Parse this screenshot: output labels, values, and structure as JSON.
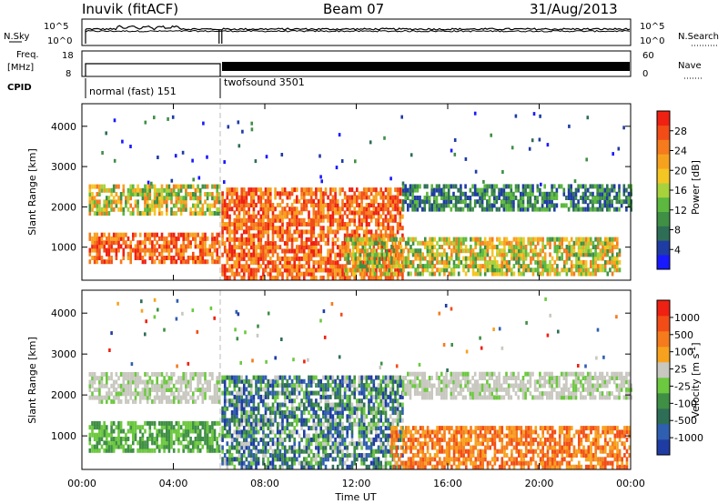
{
  "header": {
    "station": "Inuvik (fitACF)",
    "beam": "Beam 07",
    "date": "31/Aug/2013"
  },
  "top_strip": {
    "left_label": "N.Sky",
    "left_ticks": [
      "10^5",
      "10^0"
    ],
    "right_label": "N.Search",
    "right_ticks": [
      "10^5",
      "10^0"
    ]
  },
  "freq_strip": {
    "left_label_line1": "Freq.",
    "left_label_line2": "[MHz]",
    "left_ticks": [
      "18",
      "8"
    ],
    "right_label": "Nave",
    "right_ticks": [
      "60",
      "0"
    ]
  },
  "cpid": {
    "label": "CPID",
    "modes": [
      {
        "text": "normal (fast) 151"
      },
      {
        "text": "twofsound 3501"
      }
    ]
  },
  "chart_data": [
    {
      "type": "heatmap",
      "name": "power",
      "ylabel": "Slant Range [km]",
      "xlabel": "",
      "yticks": [
        "1000",
        "2000",
        "3000",
        "4000"
      ],
      "colorbar_label": "Power [dB]",
      "colorbar_ticks": [
        "4",
        "8",
        "12",
        "16",
        "20",
        "24",
        "28"
      ],
      "colorbar_colors": [
        "#1919ff",
        "#1f3ca3",
        "#2e6e57",
        "#3f8f45",
        "#5cb83e",
        "#a8d23b",
        "#f4c623",
        "#f7a21f",
        "#f57b1d",
        "#f24d17",
        "#ef2112"
      ],
      "bands": [
        {
          "t_start": 0.3,
          "t_end": 6.0,
          "r_low": 1800,
          "r_high": 2550,
          "level": "mid"
        },
        {
          "t_start": 0.3,
          "t_end": 6.0,
          "r_low": 600,
          "r_high": 1300,
          "level": "high"
        },
        {
          "t_start": 6.1,
          "t_end": 14.0,
          "r_low": 200,
          "r_high": 2450,
          "level": "high"
        },
        {
          "t_start": 14.0,
          "t_end": 24.0,
          "r_low": 1900,
          "r_high": 2550,
          "level": "low"
        },
        {
          "t_start": 11.5,
          "t_end": 23.5,
          "r_low": 300,
          "r_high": 1200,
          "level": "mid"
        }
      ]
    },
    {
      "type": "heatmap",
      "name": "velocity",
      "ylabel": "Slant Range [km]",
      "xlabel": "Time UT",
      "yticks": [
        "1000",
        "2000",
        "3000",
        "4000"
      ],
      "xticks": [
        "00:00",
        "04:00",
        "08:00",
        "12:00",
        "16:00",
        "20:00",
        "00:00"
      ],
      "xlim_hours": [
        0,
        24
      ],
      "ylim_km": [
        180,
        4560
      ],
      "colorbar_label": "Velocity [m s",
      "colorbar_unit_sup": "-1",
      "colorbar_unit_close": "]",
      "colorbar_ticks": [
        "1000",
        "500",
        "100",
        "25",
        "-25",
        "-100",
        "-500",
        "-1000"
      ],
      "colorbar_colors": [
        "#1f3ca3",
        "#2f5fb0",
        "#2e6e57",
        "#3f8f45",
        "#6cc83e",
        "#c8c8c0",
        "#f7a21f",
        "#f57b1d",
        "#f24d17",
        "#ef2112"
      ],
      "bands": [
        {
          "t_start": 0.3,
          "t_end": 6.0,
          "r_low": 1800,
          "r_high": 2550,
          "level": "grey"
        },
        {
          "t_start": 0.3,
          "t_end": 6.0,
          "r_low": 600,
          "r_high": 1300,
          "level": "green"
        },
        {
          "t_start": 6.1,
          "t_end": 14.0,
          "r_low": 200,
          "r_high": 2450,
          "level": "mixed"
        },
        {
          "t_start": 14.0,
          "t_end": 24.0,
          "r_low": 1900,
          "r_high": 2550,
          "level": "grey"
        },
        {
          "t_start": 13.5,
          "t_end": 24.0,
          "r_low": 200,
          "r_high": 1200,
          "level": "orange"
        }
      ]
    }
  ],
  "colors": {
    "axis": "#000000",
    "blank": "#ffffff"
  }
}
